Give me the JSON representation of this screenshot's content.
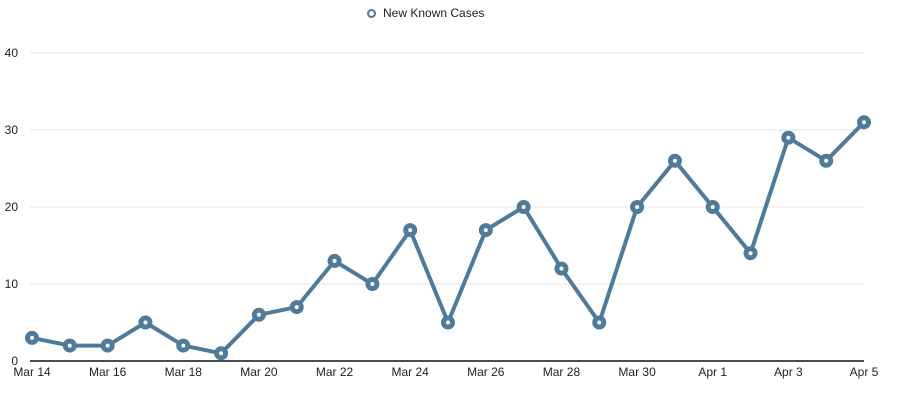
{
  "chart_data": {
    "type": "line",
    "series_name": "New Known Cases",
    "categories": [
      "Mar 14",
      "Mar 15",
      "Mar 16",
      "Mar 17",
      "Mar 18",
      "Mar 19",
      "Mar 20",
      "Mar 21",
      "Mar 22",
      "Mar 23",
      "Mar 24",
      "Mar 25",
      "Mar 26",
      "Mar 27",
      "Mar 28",
      "Mar 29",
      "Mar 30",
      "Mar 31",
      "Apr 1",
      "Apr 2",
      "Apr 3",
      "Apr 4",
      "Apr 5"
    ],
    "values": [
      3,
      2,
      2,
      5,
      2,
      1,
      6,
      7,
      13,
      10,
      17,
      5,
      17,
      20,
      12,
      5,
      20,
      26,
      20,
      14,
      29,
      26,
      31
    ],
    "x_tick_labels": [
      "Mar 14",
      "Mar 16",
      "Mar 18",
      "Mar 20",
      "Mar 22",
      "Mar 24",
      "Mar 26",
      "Mar 28",
      "Mar 30",
      "Apr 1",
      "Apr 3",
      "Apr 5"
    ],
    "x_tick_step": 2,
    "yticks": [
      0,
      10,
      20,
      30,
      40
    ],
    "ylim": [
      0,
      40
    ],
    "grid": "horizontal",
    "legend_position": "top-center",
    "marker": "open-circle",
    "colors": {
      "line": "#4f7a9a",
      "marker_fill": "#ffffff",
      "grid": "#e6e6e6",
      "axis": "#111111",
      "text": "#222222"
    }
  }
}
